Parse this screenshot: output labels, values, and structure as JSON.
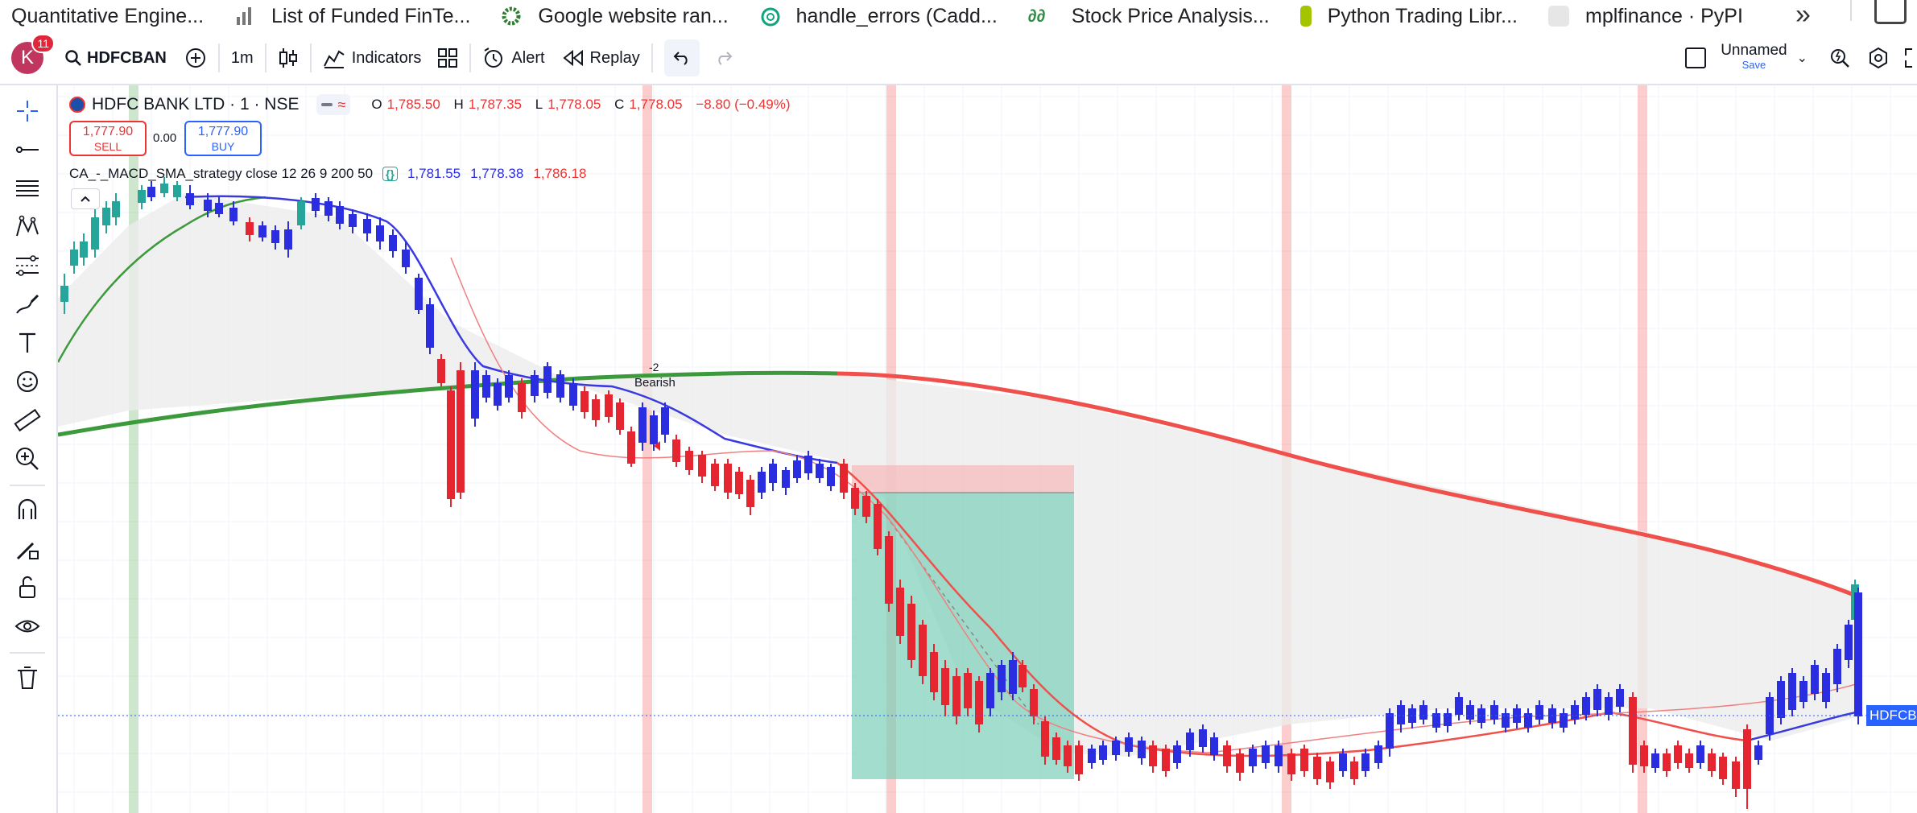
{
  "bookmarks": {
    "items": [
      {
        "label": "Quantitative Engine...",
        "icon": "bookmark-blue-icon",
        "color": "#1a56db"
      },
      {
        "label": "List of Funded FinTe...",
        "icon": "bar-chart-icon",
        "color": "#777777"
      },
      {
        "label": "Google website ran...",
        "icon": "google-sun-icon",
        "color": "#2e7d32"
      },
      {
        "label": "handle_errors (Cadd...",
        "icon": "openai-icon",
        "color": "#10a37f"
      },
      {
        "label": "Stock Price Analysis...",
        "icon": "geeksforgeeks-icon",
        "color": "#2f8d46"
      },
      {
        "label": "Python Trading Libr...",
        "icon": "bookmark-lime-icon",
        "color": "#a4c400"
      },
      {
        "label": "mplfinance · PyPI",
        "icon": "pypi-icon",
        "color": "#cccccc"
      }
    ],
    "more": "»"
  },
  "toolbar": {
    "avatar_letter": "K",
    "notifications": "11",
    "symbol": "HDFCBAN",
    "interval": "1m",
    "indicators_label": "Indicators",
    "alert_label": "Alert",
    "replay_label": "Replay",
    "layout_name": "Unnamed",
    "save_label": "Save"
  },
  "legend": {
    "title": "HDFC BANK LTD · 1 · NSE",
    "open_label": "O",
    "open": "1,785.50",
    "high_label": "H",
    "high": "1,787.35",
    "low_label": "L",
    "low": "1,778.05",
    "close_label": "C",
    "close": "1,778.05",
    "change": "−8.80 (−0.49%)",
    "sell_price": "1,777.90",
    "sell_label": "SELL",
    "spread": "0.00",
    "buy_price": "1,777.90",
    "buy_label": "BUY",
    "strategy": "CA_-_MACD_SMA_strategy close 12 26 9 200 50",
    "strategy_v1": "1,781.55",
    "strategy_v2": "1,778.38",
    "strategy_v3": "1,786.18",
    "price_tag": "HDFCBANK",
    "signal_qty": "-2",
    "signal_label": "Bearish"
  },
  "colors": {
    "up": "#26a69a",
    "down": "#e52630",
    "blue_candle": "#2a2ee0",
    "sma_bull": "#3c9a3c",
    "sma_bear": "#f0504b",
    "fast_line": "#3a3adf",
    "accent": "#2962ff"
  }
}
